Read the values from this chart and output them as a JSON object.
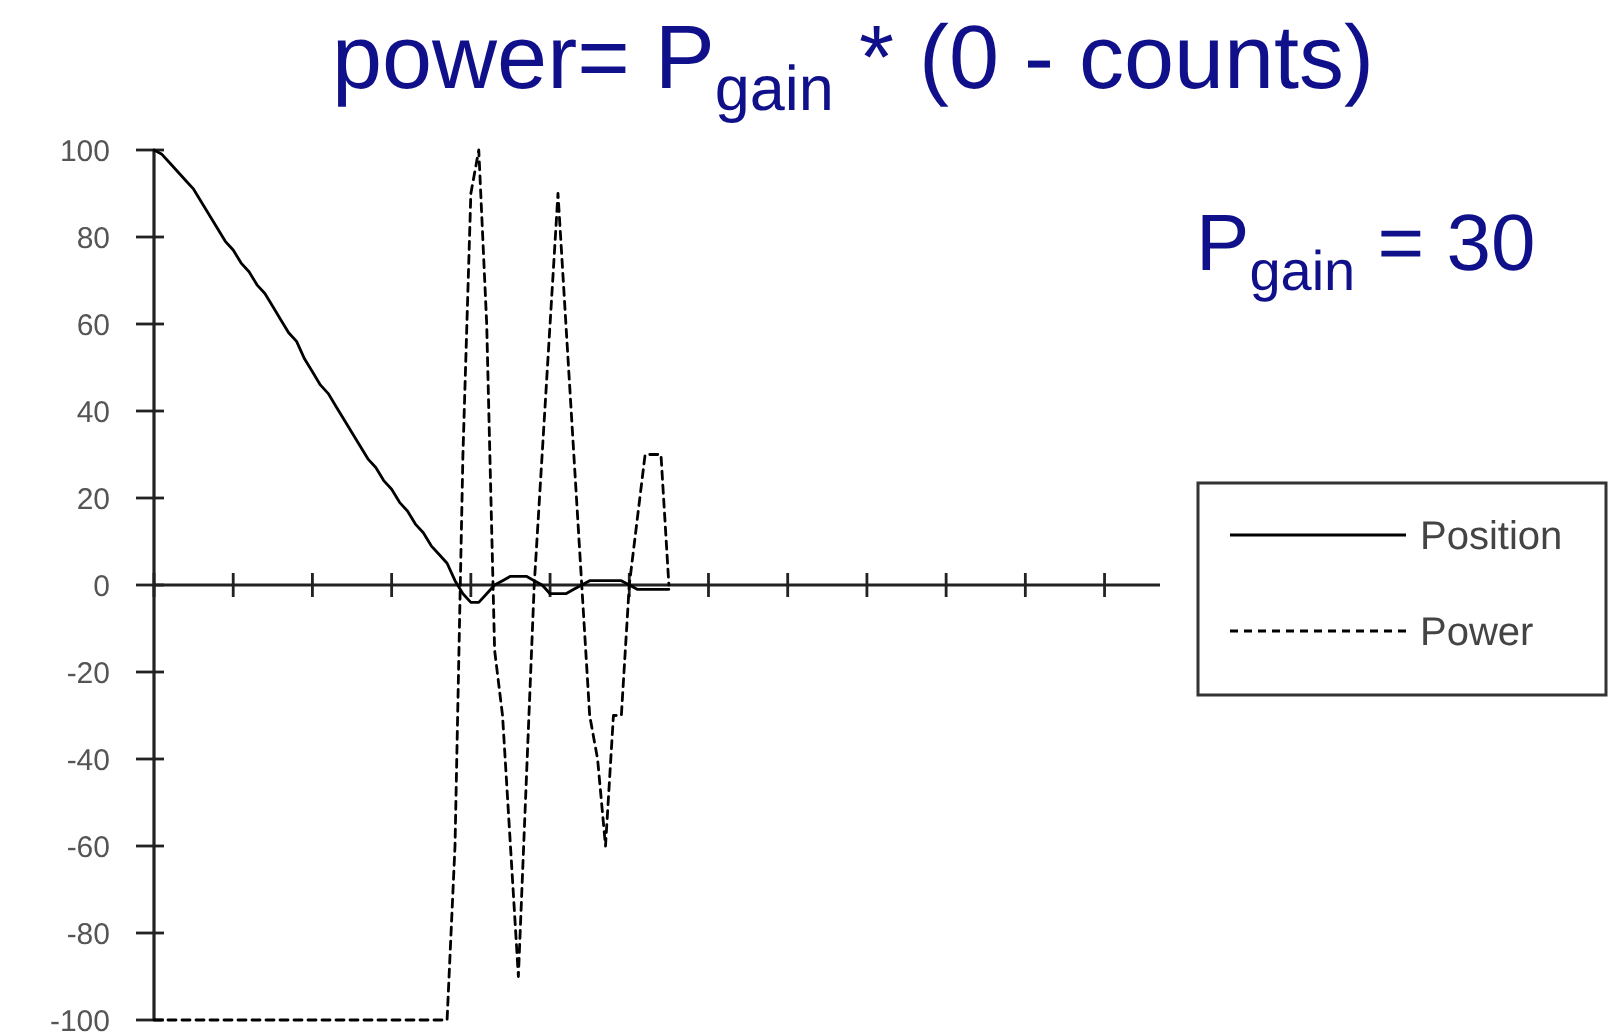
{
  "chart_data": {
    "type": "line",
    "title": "power= P$_{gain}$ * (0 - counts)",
    "annotations": [
      "P$_{gain}$ = 30"
    ],
    "categories": [
      null,
      null,
      null,
      null,
      null,
      null,
      null,
      null,
      null,
      null,
      null,
      null,
      null,
      null,
      null,
      null,
      null,
      null,
      null,
      null,
      null,
      null,
      null,
      null,
      null,
      null,
      null,
      null,
      null,
      null,
      null,
      null,
      null,
      null,
      null,
      null,
      null,
      null,
      null,
      null,
      null,
      null,
      null,
      null,
      null,
      null,
      null,
      null,
      null,
      null,
      null,
      null,
      null,
      null,
      null,
      null,
      null,
      null,
      null,
      null,
      null,
      null,
      null,
      null,
      null,
      null,
      null,
      null,
      null,
      null,
      null,
      null,
      null,
      null,
      null,
      null,
      null,
      null,
      null,
      null,
      null,
      null,
      null,
      null,
      null,
      null,
      null,
      null,
      null,
      null,
      null,
      null,
      null,
      null,
      null,
      null,
      null,
      null,
      null,
      null,
      null,
      null,
      null,
      null,
      null,
      null,
      null,
      null,
      null,
      null,
      null,
      null,
      null,
      null,
      null,
      null,
      null,
      null,
      null,
      null,
      null,
      null,
      null,
      null,
      null,
      null,
      null,
      null
    ],
    "series": [
      {
        "name": "Position",
        "color": "#000000",
        "line_style": "solid",
        "values": [
          100,
          99,
          97,
          95,
          93,
          91,
          88,
          85,
          82,
          79,
          77,
          74,
          72,
          69,
          67,
          64,
          61,
          58,
          56,
          52,
          49,
          46,
          44,
          41,
          38,
          35,
          32,
          29,
          27,
          24,
          22,
          19,
          17,
          14,
          12,
          9,
          7,
          5,
          1,
          -2,
          -4,
          -4,
          -2,
          0,
          1,
          2,
          2,
          2,
          1,
          0,
          -2,
          -2,
          -2,
          -1,
          0,
          1,
          1,
          1,
          1,
          1,
          0,
          -1,
          -1,
          -1,
          -1,
          -1,
          null,
          null,
          null,
          null,
          null,
          null,
          null,
          null,
          null,
          null,
          null,
          null,
          null,
          null,
          null,
          null,
          null,
          null,
          null,
          null,
          null,
          null,
          null,
          null,
          null,
          null,
          null,
          null,
          null,
          null,
          null,
          null,
          null,
          null,
          null,
          null,
          null,
          null,
          null,
          null,
          null,
          null,
          null,
          null,
          null,
          null,
          null,
          null,
          null,
          null,
          null,
          null,
          null,
          null,
          null,
          null,
          null,
          null,
          null,
          null,
          null,
          null
        ]
      },
      {
        "name": "Power",
        "color": "#000000",
        "line_style": "dashed",
        "values": [
          -100,
          -100,
          -100,
          -100,
          -100,
          -100,
          -100,
          -100,
          -100,
          -100,
          -100,
          -100,
          -100,
          -100,
          -100,
          -100,
          -100,
          -100,
          -100,
          -100,
          -100,
          -100,
          -100,
          -100,
          -100,
          -100,
          -100,
          -100,
          -100,
          -100,
          -100,
          -100,
          -100,
          -100,
          -100,
          -100,
          -100,
          -100,
          -60,
          30,
          90,
          100,
          60,
          -15,
          -30,
          -60,
          -90,
          -45,
          0,
          30,
          60,
          90,
          60,
          30,
          0,
          -30,
          -40,
          -60,
          -30,
          -30,
          0,
          15,
          30,
          30,
          30,
          0,
          null,
          null,
          null,
          null,
          null,
          null,
          null,
          null,
          null,
          null,
          null,
          null,
          null,
          null,
          null,
          null,
          null,
          null,
          null,
          null,
          null,
          null,
          null,
          null,
          null,
          null,
          null,
          null,
          null,
          null,
          null,
          null,
          null,
          null,
          null,
          null,
          null,
          null,
          null,
          null,
          null,
          null,
          null,
          null,
          null,
          null,
          null,
          null,
          null,
          null,
          null,
          null,
          null,
          null,
          null,
          null,
          null,
          null,
          null,
          null,
          null,
          null
        ]
      }
    ],
    "ylim": [
      -100,
      100
    ],
    "yticks": [
      -100,
      -80,
      -60,
      -40,
      -20,
      0,
      20,
      40,
      60,
      80,
      100
    ],
    "legend": "right"
  }
}
